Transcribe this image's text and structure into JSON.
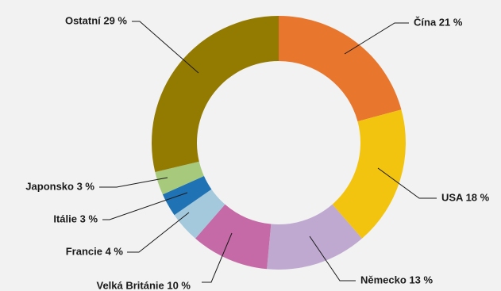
{
  "chart_data": {
    "type": "pie",
    "style": "donut",
    "slices": [
      {
        "label": "Čína 21 %",
        "category": "Čína",
        "value": 21,
        "color": "#e8762d"
      },
      {
        "label": "USA 18 %",
        "category": "USA",
        "value": 18,
        "color": "#f2c40f"
      },
      {
        "label": "Německo 13 %",
        "category": "Německo",
        "value": 13,
        "color": "#c0a9d0"
      },
      {
        "label": "Velká Británie 10 %",
        "category": "Velká Británie",
        "value": 10,
        "color": "#c56aa6"
      },
      {
        "label": "Francie 4 %",
        "category": "Francie",
        "value": 4,
        "color": "#a4c8dc"
      },
      {
        "label": "Itálie 3 %",
        "category": "Itálie",
        "value": 3,
        "color": "#1f73b5"
      },
      {
        "label": "Japonsko 3 %",
        "category": "Japonsko",
        "value": 3,
        "color": "#a6c97c"
      },
      {
        "label": "Ostatní  29 %",
        "category": "Ostatní",
        "value": 29,
        "color": "#937a00"
      }
    ],
    "start": "12 o'clock",
    "direction": "clockwise",
    "legend": "none"
  }
}
